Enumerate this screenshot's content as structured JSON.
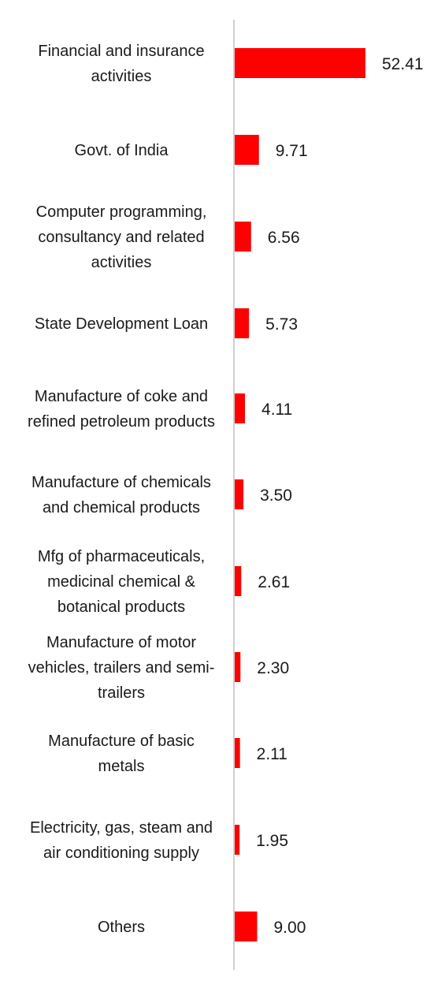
{
  "chart_data": {
    "type": "bar",
    "orientation": "horizontal",
    "categories": [
      [
        "Financial and insurance",
        "activities"
      ],
      [
        "Govt. of India"
      ],
      [
        "Computer programming,",
        "consultancy and related",
        "activities"
      ],
      [
        "State Development Loan"
      ],
      [
        "Manufacture of coke and",
        "refined petroleum products"
      ],
      [
        "Manufacture of chemicals",
        "and chemical products"
      ],
      [
        "Mfg of pharmaceuticals,",
        "medicinal chemical &",
        "botanical products"
      ],
      [
        "Manufacture of motor",
        "vehicles, trailers and semi-",
        "trailers"
      ],
      [
        "Manufacture of basic",
        "metals"
      ],
      [
        "Electricity, gas, steam and",
        "air conditioning supply"
      ],
      [
        "Others"
      ]
    ],
    "values": [
      52.41,
      9.71,
      6.56,
      5.73,
      4.11,
      3.5,
      2.61,
      2.3,
      2.11,
      1.95,
      9.0
    ],
    "value_labels": [
      "52.41",
      "9.71",
      "6.56",
      "5.73",
      "4.11",
      "3.50",
      "2.61",
      "2.30",
      "2.11",
      "1.95",
      "9.00"
    ],
    "bar_color": "#ff0000",
    "axis_color": "#d0d0d0",
    "grid": false,
    "legend": "none"
  }
}
